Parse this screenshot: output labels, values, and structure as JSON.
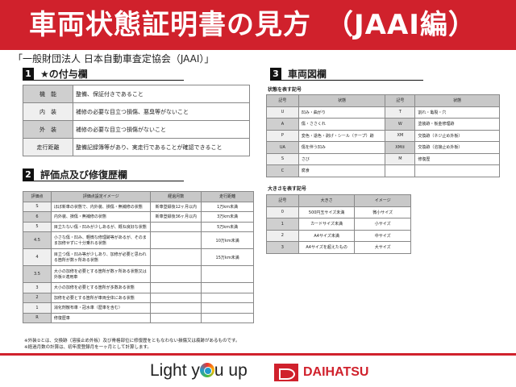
{
  "header": {
    "title": "車両状態証明書の見方　（JAAI編）"
  },
  "subtitle": "「一般財団法人 日本自動車査定協会（JAAI）」",
  "section1": {
    "num": "1",
    "title": "★の付与欄",
    "rows": [
      {
        "k": "機　能",
        "v": "整備、保証付きであること"
      },
      {
        "k": "内　装",
        "v": "補修の必要な目立つ損傷、悪臭等がないこと"
      },
      {
        "k": "外　装",
        "v": "補修の必要な目立つ損傷がないこと"
      },
      {
        "k": "走行距離",
        "v": "整備記録簿等があり、実走行であることが確認できること"
      }
    ]
  },
  "section2": {
    "num": "2",
    "title": "評価点及び修復歴欄",
    "headers": [
      "評価点",
      "評価点設定イメージ",
      "経過月数",
      "走行距離"
    ],
    "rows": [
      [
        "S",
        "ほぼ新車の状態で、内外装、損傷・無補修の状態",
        "新車登録後12ヶ月以内",
        "1万km未満"
      ],
      [
        "6",
        "内外装、損傷・無補修の状態",
        "新車登録後36ヶ月以内",
        "3万km未満"
      ],
      [
        "5",
        "目立たない傷・凹みが少しあるが、概ね良好な状態",
        "",
        "5万km未満"
      ],
      [
        "4.5",
        "小さな傷・凹み、軽微な修理跡等があるが、そのまま加修せずに十分乗れる状態",
        "",
        "10万km未満"
      ],
      [
        "4",
        "目立つ傷・凹み等が少しあり、加修が必要と思われる箇所が数ヶ所ある状態",
        "",
        "15万km未満"
      ],
      [
        "3.5",
        "大小の加修を必要とする箇所が数ヶ所ある状態又は外板②適用車",
        "",
        ""
      ],
      [
        "3",
        "大小の加修を必要とする箇所が多数ある状態",
        "",
        ""
      ],
      [
        "2",
        "加修を必要とする箇所が車両全体にある状態",
        "",
        ""
      ],
      [
        "1",
        "消化剤散布車・冠水車（歴車を含む）",
        "",
        ""
      ],
      [
        "R",
        "修復歴車",
        "",
        ""
      ]
    ]
  },
  "section3": {
    "num": "3",
    "title": "車両図欄",
    "state_caption": "状態を表す記号",
    "state_headers": [
      "記号",
      "状態",
      "記号",
      "状態"
    ],
    "state_rows": [
      [
        "U",
        "凹み・曲がり",
        "T",
        "割れ・亀裂・穴"
      ],
      [
        "A",
        "傷・ささくれ",
        "W",
        "塗装跡・板金修理跡"
      ],
      [
        "P",
        "変色・退色・剥げ・シール（テープ）跡",
        "XM",
        "交換跡（ネジ止め外板）"
      ],
      [
        "UA",
        "傷を伴う凹み",
        "XM②",
        "交換跡（溶接止め外板）"
      ],
      [
        "S",
        "さび",
        "M",
        "修復歴"
      ],
      [
        "C",
        "腐食",
        "",
        ""
      ]
    ],
    "size_caption": "大きさを表す記号",
    "size_headers": [
      "記号",
      "大きさ",
      "イメージ"
    ],
    "size_rows": [
      [
        "0",
        "500円玉サイズ未満",
        "微小サイズ"
      ],
      [
        "1",
        "カードサイズ未満",
        "小サイズ"
      ],
      [
        "2",
        "A4サイズ未満",
        "中サイズ"
      ],
      [
        "3",
        "A4サイズを超えたもの",
        "大サイズ"
      ]
    ]
  },
  "notes": [
    "※外装②とは、交換跡（溶接止め外板）及び骨格部位に修復歴をともなわない損傷又は痕跡があるものです。",
    "※経過月数の計算は、初年度登録月を一ヶ月として計算します。"
  ],
  "footer": {
    "slogan_a": "Light y",
    "slogan_b": "u up",
    "brand": "DAIHATSU"
  },
  "colors": {
    "accent": "#d0212c"
  }
}
